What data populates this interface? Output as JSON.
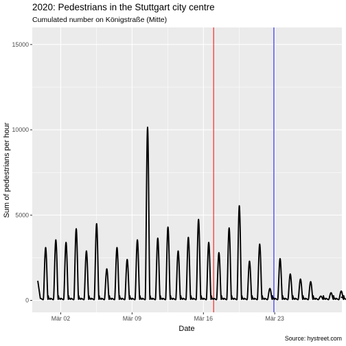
{
  "chart_data": {
    "type": "line",
    "title": "2020: Pedestrians in the Stuttgart city centre",
    "subtitle": "Cumulated number on Königstraße (Mitte)",
    "xlabel": "Date",
    "ylabel": "Sum of pedestrians per hour",
    "caption": "Source: hystreet.com",
    "x_unit": "date",
    "xlim": [
      "2020-02-28T05:00",
      "2020-03-29T14:00"
    ],
    "ylim": [
      -700,
      16000
    ],
    "x_ticks": [
      {
        "label": "Mär 02",
        "value": "2020-03-02"
      },
      {
        "label": "Mär 09",
        "value": "2020-03-09"
      },
      {
        "label": "Mär 16",
        "value": "2020-03-16"
      },
      {
        "label": "Mär 23",
        "value": "2020-03-23"
      }
    ],
    "y_ticks": [
      {
        "label": "0",
        "value": 0
      },
      {
        "label": "5000",
        "value": 5000
      },
      {
        "label": "10000",
        "value": 10000
      },
      {
        "label": "15000",
        "value": 15000
      }
    ],
    "grid": true,
    "background": "#ebebeb",
    "line_color": "#000000",
    "vertical_lines": [
      {
        "x": "2020-03-17T00:00",
        "color": "#ff0000"
      },
      {
        "x": "2020-03-22T22:00",
        "color": "#0000ff"
      }
    ],
    "series": [
      {
        "daily_peaks": [
          {
            "date": "2020-02-29",
            "peak": 3100
          },
          {
            "date": "2020-03-01",
            "peak": 3550
          },
          {
            "date": "2020-03-02",
            "peak": 3400
          },
          {
            "date": "2020-03-03",
            "peak": 4200
          },
          {
            "date": "2020-03-04",
            "peak": 2900
          },
          {
            "date": "2020-03-05",
            "peak": 4500
          },
          {
            "date": "2020-03-06",
            "peak": 1850
          },
          {
            "date": "2020-03-07",
            "peak": 3100
          },
          {
            "date": "2020-03-08",
            "peak": 2400
          },
          {
            "date": "2020-03-09",
            "peak": 3550
          },
          {
            "date": "2020-03-10",
            "peak": 10150
          },
          {
            "date": "2020-03-11",
            "peak": 3650
          },
          {
            "date": "2020-03-12",
            "peak": 4300
          },
          {
            "date": "2020-03-13",
            "peak": 2900
          },
          {
            "date": "2020-03-14",
            "peak": 3700
          },
          {
            "date": "2020-03-15",
            "peak": 4750
          },
          {
            "date": "2020-03-16",
            "peak": 3400
          },
          {
            "date": "2020-03-17",
            "peak": 2800
          },
          {
            "date": "2020-03-18",
            "peak": 4250
          },
          {
            "date": "2020-03-19",
            "peak": 5550
          },
          {
            "date": "2020-03-20",
            "peak": 2300
          },
          {
            "date": "2020-03-21",
            "peak": 3300
          },
          {
            "date": "2020-03-22",
            "peak": 700
          },
          {
            "date": "2020-03-23",
            "peak": 2450
          },
          {
            "date": "2020-03-24",
            "peak": 1550
          },
          {
            "date": "2020-03-25",
            "peak": 1250
          },
          {
            "date": "2020-03-26",
            "peak": 1100
          },
          {
            "date": "2020-03-27",
            "peak": 250
          },
          {
            "date": "2020-03-28",
            "peak": 450
          },
          {
            "date": "2020-03-29",
            "peak": 550
          }
        ]
      }
    ]
  }
}
